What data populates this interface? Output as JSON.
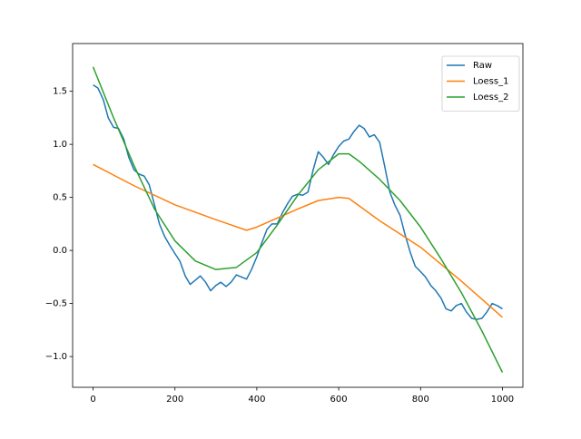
{
  "chart_data": {
    "type": "line",
    "xlim": [
      -50,
      1050
    ],
    "ylim": [
      -1.29,
      1.95
    ],
    "xticks": [
      0,
      200,
      400,
      600,
      800,
      1000
    ],
    "yticks": [
      {
        "value": -1,
        "label": "−1.0"
      },
      {
        "value": -0.5,
        "label": "−0.5"
      },
      {
        "value": 0,
        "label": "0.0"
      },
      0.5,
      {
        "value": 1,
        "label": "1.0"
      },
      1.5
    ],
    "legend": "upper right",
    "series": [
      {
        "name": "Raw",
        "color": "#1f77b4",
        "x": [
          0,
          12,
          25,
          37,
          50,
          62,
          75,
          87,
          100,
          112,
          125,
          137,
          150,
          162,
          175,
          187,
          200,
          212,
          225,
          237,
          250,
          262,
          275,
          287,
          300,
          312,
          325,
          337,
          350,
          362,
          375,
          387,
          400,
          412,
          425,
          437,
          450,
          462,
          475,
          487,
          500,
          512,
          525,
          537,
          550,
          562,
          575,
          587,
          600,
          612,
          625,
          637,
          650,
          662,
          675,
          687,
          700,
          712,
          725,
          737,
          750,
          762,
          775,
          787,
          800,
          812,
          825,
          837,
          850,
          862,
          875,
          887,
          900,
          912,
          925,
          937,
          950,
          962,
          975,
          987,
          1000
        ],
        "values": [
          1.56,
          1.53,
          1.42,
          1.25,
          1.16,
          1.15,
          1.05,
          0.88,
          0.76,
          0.72,
          0.7,
          0.62,
          0.43,
          0.25,
          0.13,
          0.05,
          -0.03,
          -0.1,
          -0.24,
          -0.32,
          -0.28,
          -0.24,
          -0.3,
          -0.38,
          -0.33,
          -0.3,
          -0.34,
          -0.3,
          -0.23,
          -0.25,
          -0.27,
          -0.18,
          -0.06,
          0.07,
          0.2,
          0.25,
          0.25,
          0.35,
          0.44,
          0.51,
          0.53,
          0.52,
          0.55,
          0.75,
          0.93,
          0.88,
          0.81,
          0.9,
          0.98,
          1.03,
          1.05,
          1.12,
          1.18,
          1.15,
          1.07,
          1.09,
          1.02,
          0.8,
          0.55,
          0.43,
          0.33,
          0.15,
          -0.02,
          -0.15,
          -0.2,
          -0.25,
          -0.33,
          -0.38,
          -0.45,
          -0.55,
          -0.57,
          -0.52,
          -0.5,
          -0.58,
          -0.64,
          -0.65,
          -0.64,
          -0.58,
          -0.5,
          -0.52,
          -0.55
        ]
      },
      {
        "name": "Loess_1",
        "color": "#ff7f0e",
        "x": [
          0,
          100,
          200,
          300,
          375,
          400,
          500,
          550,
          600,
          625,
          700,
          800,
          900,
          1000
        ],
        "values": [
          0.81,
          0.61,
          0.43,
          0.29,
          0.19,
          0.22,
          0.39,
          0.47,
          0.5,
          0.49,
          0.28,
          0.03,
          -0.29,
          -0.63
        ]
      },
      {
        "name": "Loess_2",
        "color": "#2ca02c",
        "x": [
          0,
          50,
          100,
          150,
          200,
          250,
          300,
          350,
          400,
          450,
          500,
          550,
          600,
          625,
          650,
          700,
          750,
          800,
          850,
          900,
          950,
          1000
        ],
        "values": [
          1.73,
          1.25,
          0.8,
          0.39,
          0.09,
          -0.1,
          -0.18,
          -0.16,
          -0.02,
          0.24,
          0.52,
          0.76,
          0.91,
          0.91,
          0.84,
          0.67,
          0.47,
          0.22,
          -0.08,
          -0.4,
          -0.76,
          -1.15
        ]
      }
    ]
  }
}
